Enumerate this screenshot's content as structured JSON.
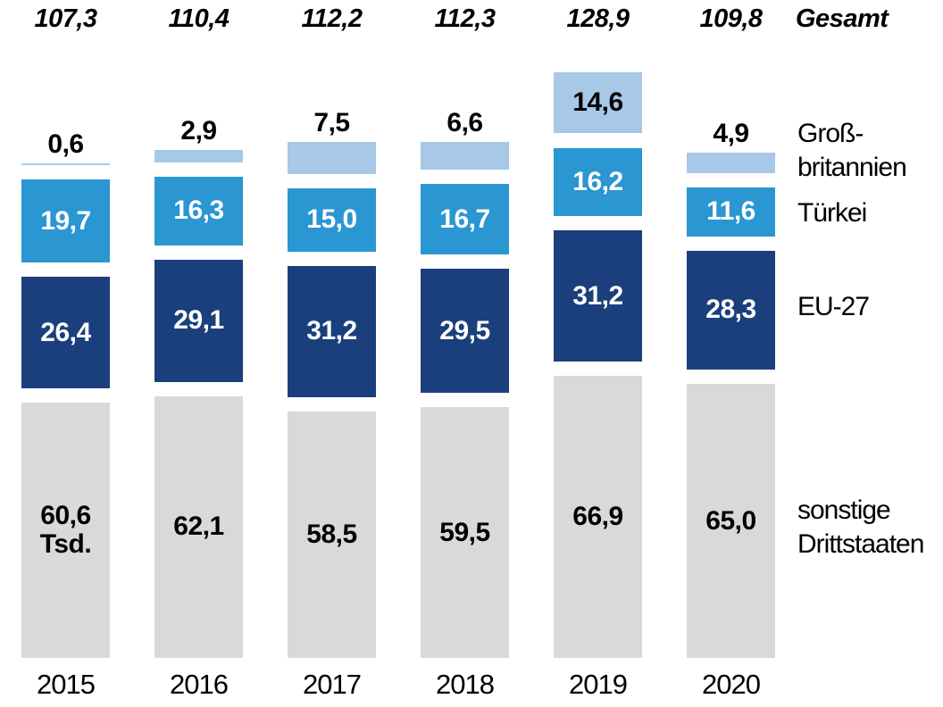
{
  "chart_data": {
    "type": "bar",
    "subtype": "stacked-vertical",
    "title": "",
    "unit_note": "Tsd.",
    "legend_position": "right",
    "grid": false,
    "categories": [
      "2015",
      "2016",
      "2017",
      "2018",
      "2019",
      "2020"
    ],
    "totals": {
      "label": "Gesamt",
      "values": [
        "107,3",
        "110,4",
        "112,2",
        "112,3",
        "128,9",
        "109,8"
      ]
    },
    "series": [
      {
        "name": "Großbritannien",
        "legend_label": "Groß-\nbritannien",
        "color": "#a7c8e7",
        "label_color": "#000000",
        "values": [
          0.6,
          2.9,
          7.5,
          6.6,
          14.6,
          4.9
        ],
        "labels": [
          "0,6",
          "2,9",
          "7,5",
          "6,6",
          "14,6",
          "4,9"
        ]
      },
      {
        "name": "Türkei",
        "legend_label": "Türkei",
        "color": "#2a96d2",
        "label_color": "#ffffff",
        "values": [
          19.7,
          16.3,
          15.0,
          16.7,
          16.2,
          11.6
        ],
        "labels": [
          "19,7",
          "16,3",
          "15,0",
          "16,7",
          "16,2",
          "11,6"
        ]
      },
      {
        "name": "EU-27",
        "legend_label": "EU-27",
        "color": "#1a3f7c",
        "label_color": "#ffffff",
        "values": [
          26.4,
          29.1,
          31.2,
          29.5,
          31.2,
          28.3
        ],
        "labels": [
          "26,4",
          "29,1",
          "31,2",
          "29,5",
          "31,2",
          "28,3"
        ]
      },
      {
        "name": "sonstige Drittstaaten",
        "legend_label": "sonstige\nDrittstaaten",
        "color": "#d9d9d9",
        "label_color": "#000000",
        "values": [
          60.6,
          62.1,
          58.5,
          59.5,
          66.9,
          65.0
        ],
        "labels": [
          "60,6\nTsd.",
          "62,1",
          "58,5",
          "59,5",
          "66,9",
          "65,0"
        ]
      }
    ]
  }
}
